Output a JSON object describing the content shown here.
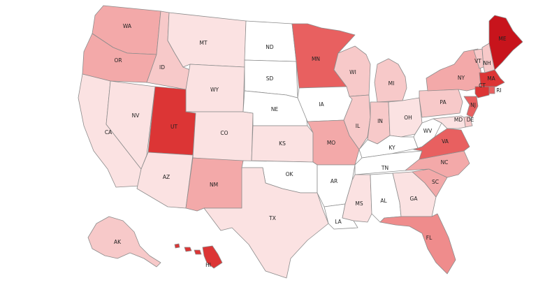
{
  "colors": {
    "c0": "#ffffff",
    "c1": "#fbe2e2",
    "c2": "#f7c9c9",
    "c3": "#f3a9a9",
    "c4": "#ef8c8c",
    "c5": "#e86060",
    "c6": "#dc3535",
    "c7": "#c8141c",
    "border": "#8c8c8c",
    "label": "#222222"
  },
  "states": [
    {
      "abbr": "WA",
      "level": 3
    },
    {
      "abbr": "OR",
      "level": 3
    },
    {
      "abbr": "CA",
      "level": 1
    },
    {
      "abbr": "NV",
      "level": 1
    },
    {
      "abbr": "ID",
      "level": 2
    },
    {
      "abbr": "MT",
      "level": 1
    },
    {
      "abbr": "WY",
      "level": 1
    },
    {
      "abbr": "UT",
      "level": 6
    },
    {
      "abbr": "AZ",
      "level": 1
    },
    {
      "abbr": "CO",
      "level": 1
    },
    {
      "abbr": "NM",
      "level": 3
    },
    {
      "abbr": "ND",
      "level": 0
    },
    {
      "abbr": "SD",
      "level": 0
    },
    {
      "abbr": "NE",
      "level": 0
    },
    {
      "abbr": "KS",
      "level": 1
    },
    {
      "abbr": "OK",
      "level": 0
    },
    {
      "abbr": "TX",
      "level": 1
    },
    {
      "abbr": "MN",
      "level": 5
    },
    {
      "abbr": "IA",
      "level": 0
    },
    {
      "abbr": "MO",
      "level": 3
    },
    {
      "abbr": "AR",
      "level": 0
    },
    {
      "abbr": "LA",
      "level": 0
    },
    {
      "abbr": "WI",
      "level": 2
    },
    {
      "abbr": "IL",
      "level": 2
    },
    {
      "abbr": "MI",
      "level": 2
    },
    {
      "abbr": "IN",
      "level": 2
    },
    {
      "abbr": "OH",
      "level": 1
    },
    {
      "abbr": "KY",
      "level": 0
    },
    {
      "abbr": "TN",
      "level": 0
    },
    {
      "abbr": "MS",
      "level": 1
    },
    {
      "abbr": "AL",
      "level": 0
    },
    {
      "abbr": "GA",
      "level": 1
    },
    {
      "abbr": "FL",
      "level": 4
    },
    {
      "abbr": "SC",
      "level": 3
    },
    {
      "abbr": "NC",
      "level": 3
    },
    {
      "abbr": "VA",
      "level": 5
    },
    {
      "abbr": "WV",
      "level": 0
    },
    {
      "abbr": "PA",
      "level": 2
    },
    {
      "abbr": "NY",
      "level": 3
    },
    {
      "abbr": "VT",
      "level": 2
    },
    {
      "abbr": "NH",
      "level": 2
    },
    {
      "abbr": "ME",
      "level": 7
    },
    {
      "abbr": "MA",
      "level": 6
    },
    {
      "abbr": "RI",
      "level": 5
    },
    {
      "abbr": "CT",
      "level": 6
    },
    {
      "abbr": "NJ",
      "level": 5
    },
    {
      "abbr": "DE",
      "level": 2
    },
    {
      "abbr": "MD",
      "level": 1
    },
    {
      "abbr": "AK",
      "level": 2
    },
    {
      "abbr": "HI",
      "level": 6
    }
  ]
}
